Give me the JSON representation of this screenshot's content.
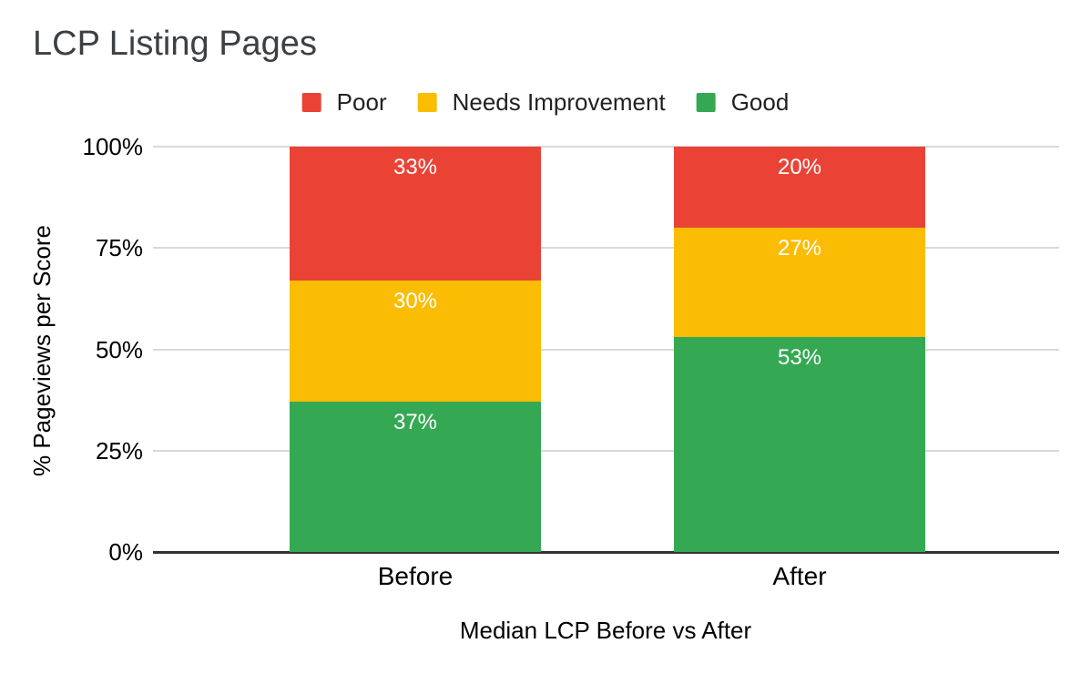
{
  "title": "LCP Listing Pages",
  "legend": {
    "items": [
      {
        "label": "Poor",
        "color": "#EA4335"
      },
      {
        "label": "Needs Improvement",
        "color": "#FBBC04"
      },
      {
        "label": "Good",
        "color": "#34A853"
      }
    ]
  },
  "chart_data": {
    "type": "bar",
    "variant": "stacked-column-100",
    "title": "LCP Listing Pages",
    "xlabel": "Median LCP Before vs After",
    "ylabel": "% Pageviews per Score",
    "categories": [
      "Before",
      "After"
    ],
    "series": [
      {
        "name": "Poor",
        "color": "#EA4335",
        "values": [
          33,
          20
        ]
      },
      {
        "name": "Needs Improvement",
        "color": "#FBBC04",
        "values": [
          30,
          27
        ]
      },
      {
        "name": "Good",
        "color": "#34A853",
        "values": [
          37,
          53
        ]
      }
    ],
    "stack_order_top_to_bottom": [
      "Poor",
      "Needs Improvement",
      "Good"
    ],
    "data_labels": [
      "33%",
      "30%",
      "37%",
      "20%",
      "27%",
      "53%"
    ],
    "ylim": [
      0,
      100
    ],
    "yticks": [
      {
        "value": 0,
        "label": "0%"
      },
      {
        "value": 25,
        "label": "25%"
      },
      {
        "value": 50,
        "label": "50%"
      },
      {
        "value": 75,
        "label": "75%"
      },
      {
        "value": 100,
        "label": "100%"
      }
    ],
    "grid": true,
    "legend_position": "top",
    "colors": {
      "poor": "#EA4335",
      "needs_improvement": "#FBBC04",
      "good": "#34A853",
      "gridline": "#d9d9d9",
      "axis_line": "#333333",
      "title_text": "#3c4043",
      "label_text": "#000000",
      "segment_label_text": "#ffffff",
      "background": "#ffffff"
    }
  }
}
